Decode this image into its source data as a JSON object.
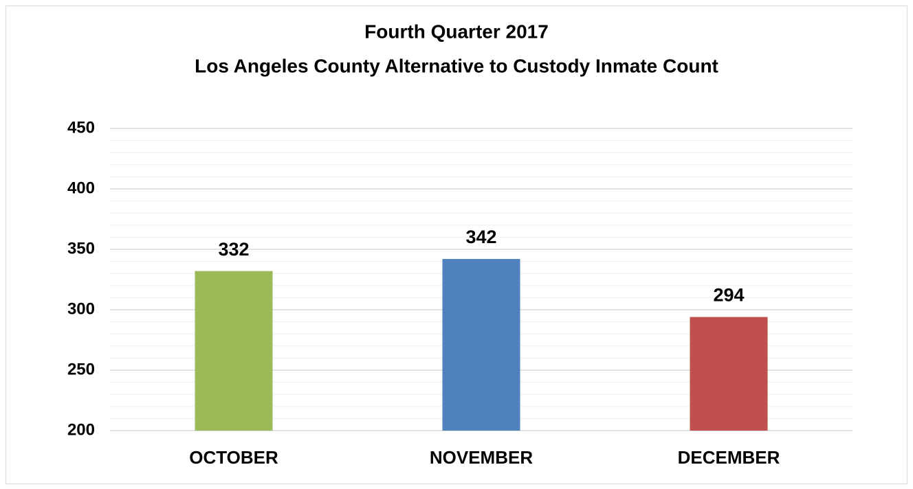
{
  "chart_data": {
    "type": "bar",
    "title": [
      "Fourth Quarter 2017",
      "Los Angeles County Alternative to Custody Inmate Count"
    ],
    "categories": [
      "OCTOBER",
      "NOVEMBER",
      "DECEMBER"
    ],
    "values": [
      332,
      342,
      294
    ],
    "colors": [
      "#9bbb59",
      "#4f81bd",
      "#c0504d"
    ],
    "ylim": [
      200,
      450
    ],
    "yticks": [
      200,
      250,
      300,
      350,
      400,
      450
    ],
    "minor_yticks": [
      210,
      220,
      230,
      240,
      260,
      270,
      280,
      290,
      310,
      320,
      330,
      340,
      360,
      370,
      380,
      390,
      410,
      420,
      430,
      440
    ],
    "grid": true
  }
}
